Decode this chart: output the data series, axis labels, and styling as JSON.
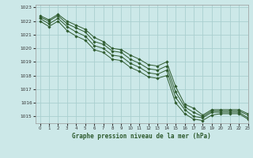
{
  "title": "Graphe pression niveau de la mer (hPa)",
  "bg_color": "#cce8e8",
  "grid_color": "#aacfcf",
  "line_color": "#2d5a2d",
  "xlim": [
    -0.5,
    23
  ],
  "ylim": [
    1014.5,
    1023.2
  ],
  "yticks": [
    1015,
    1016,
    1017,
    1018,
    1019,
    1020,
    1021,
    1022,
    1023
  ],
  "xticks": [
    0,
    1,
    2,
    3,
    4,
    5,
    6,
    7,
    8,
    9,
    10,
    11,
    12,
    13,
    14,
    15,
    16,
    17,
    18,
    19,
    20,
    21,
    22,
    23
  ],
  "series": [
    [
      1022.4,
      1022.1,
      1022.5,
      1022.0,
      1021.7,
      1021.4,
      1020.8,
      1020.5,
      1020.0,
      1019.9,
      1019.5,
      1019.2,
      1018.8,
      1018.7,
      1019.0,
      1017.2,
      1015.9,
      1015.6,
      1015.1,
      1015.5,
      1015.5,
      1015.5,
      1015.5,
      1015.2
    ],
    [
      1022.3,
      1022.0,
      1022.4,
      1021.8,
      1021.5,
      1021.2,
      1020.5,
      1020.3,
      1019.8,
      1019.7,
      1019.2,
      1018.9,
      1018.5,
      1018.4,
      1018.7,
      1016.8,
      1015.7,
      1015.3,
      1015.0,
      1015.4,
      1015.4,
      1015.4,
      1015.4,
      1015.1
    ],
    [
      1022.2,
      1021.8,
      1022.2,
      1021.6,
      1021.2,
      1020.9,
      1020.2,
      1020.0,
      1019.5,
      1019.4,
      1018.9,
      1018.6,
      1018.2,
      1018.1,
      1018.4,
      1016.4,
      1015.5,
      1015.0,
      1014.9,
      1015.3,
      1015.3,
      1015.3,
      1015.3,
      1014.9
    ],
    [
      1022.0,
      1021.6,
      1022.0,
      1021.3,
      1020.9,
      1020.6,
      1019.9,
      1019.7,
      1019.2,
      1019.1,
      1018.6,
      1018.3,
      1017.9,
      1017.8,
      1018.0,
      1016.0,
      1015.2,
      1014.8,
      1014.7,
      1015.1,
      1015.2,
      1015.2,
      1015.2,
      1014.8
    ]
  ]
}
